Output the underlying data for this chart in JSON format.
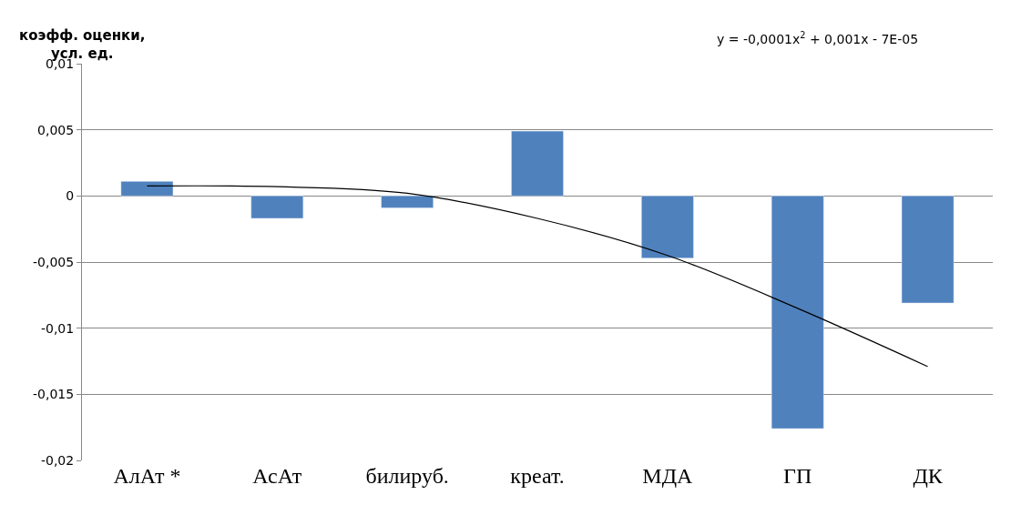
{
  "chart_data": {
    "type": "bar",
    "ylabel": "коэфф. оценки,\nусл. ед.",
    "categories": [
      "АлАт *",
      "АсАт",
      "билируб.",
      "креат.",
      "МДА",
      "ГП",
      "ДК"
    ],
    "series": [
      {
        "color": "#4f81bd",
        "values": [
          0.0011,
          -0.0017,
          -0.0009,
          0.0049,
          -0.0047,
          -0.0176,
          -0.0081
        ]
      },
      {
        "type": "line",
        "color": "#000000",
        "values": [
          0.00075,
          0.0007,
          0.0002,
          -0.0017,
          -0.0045,
          -0.0085,
          -0.0129
        ]
      }
    ],
    "annotations": [
      "y = -0,0001x$^{2}$ + 0,001x - 7E-05"
    ],
    "ylim": [
      -0.02,
      0.01
    ],
    "yticks": [
      {
        "value": -0.02,
        "label": "-0,02"
      },
      {
        "value": -0.015,
        "label": "-0,015"
      },
      {
        "value": -0.01,
        "label": "-0,01"
      },
      {
        "value": -0.005,
        "label": "-0,005"
      },
      {
        "value": 0,
        "label": "0"
      },
      {
        "value": 0.005,
        "label": "0,005"
      },
      {
        "value": 0.01,
        "label": "0,01"
      }
    ],
    "grid": "y"
  }
}
